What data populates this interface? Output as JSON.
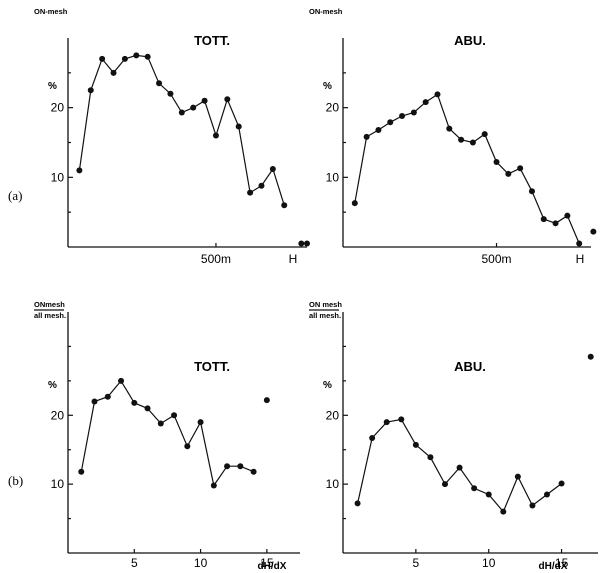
{
  "row_labels": {
    "a": "(a)",
    "b": "(b)"
  },
  "chart_data": [
    {
      "type": "line",
      "title": "TOTT.",
      "ylabel_top": "ON-mesh",
      "ylabel": "%",
      "xlabel": "H",
      "xtick_labels": [
        {
          "x": 13,
          "label": "500m"
        }
      ],
      "ylim": [
        0,
        30
      ],
      "yticks": [
        10,
        20
      ],
      "x": [
        1,
        2,
        3,
        4,
        5,
        6,
        7,
        8,
        9,
        10,
        11,
        12,
        13,
        14,
        15,
        16,
        17,
        18,
        19,
        20,
        21
      ],
      "y": [
        11,
        22.5,
        27,
        25,
        27,
        27.5,
        27.3,
        23.5,
        22,
        19.3,
        20,
        21,
        16,
        21.2,
        17.3,
        7.8,
        8.8,
        11.2,
        6,
        null,
        0.5
      ],
      "isolated": [
        {
          "x": 20.5,
          "y": 0.5
        }
      ],
      "xlim": [
        0,
        21
      ]
    },
    {
      "type": "line",
      "title": "ABU.",
      "ylabel_top": "ON-mesh",
      "ylabel": "%",
      "xlabel": "H",
      "xtick_labels": [
        {
          "x": 13,
          "label": "500m"
        }
      ],
      "ylim": [
        0,
        30
      ],
      "yticks": [
        10,
        20
      ],
      "x": [
        1,
        2,
        3,
        4,
        5,
        6,
        7,
        8,
        9,
        10,
        11,
        12,
        13,
        14,
        15,
        16,
        17,
        18,
        19,
        20,
        21
      ],
      "y": [
        6.3,
        15.8,
        16.8,
        17.9,
        18.8,
        19.3,
        20.8,
        21.9,
        17,
        15.4,
        15,
        16.2,
        12.2,
        10.5,
        11.3,
        8,
        4,
        3.4,
        4.5,
        0.5,
        null
      ],
      "isolated": [
        {
          "x": 21.2,
          "y": 2.2
        }
      ],
      "xlim": [
        0,
        21
      ]
    },
    {
      "type": "line",
      "title": "TOTT.",
      "ylabel_top": "ONmesh",
      "ylabel_bottom": "all mesh.",
      "ylabel": "%",
      "xlabel": "dH/dX",
      "xticks": [
        5,
        10,
        15
      ],
      "ylim": [
        0,
        35
      ],
      "yticks": [
        10,
        20
      ],
      "x": [
        1,
        2,
        3,
        4,
        5,
        6,
        7,
        8,
        9,
        10,
        11,
        12,
        13,
        14
      ],
      "y": [
        11.8,
        22,
        22.7,
        25,
        21.8,
        21,
        18.8,
        20,
        15.5,
        19,
        9.8,
        12.6,
        12.6,
        11.8
      ],
      "isolated": [
        {
          "x": 15,
          "y": 22.2
        }
      ],
      "xlim": [
        0,
        17.5
      ]
    },
    {
      "type": "line",
      "title": "ABU.",
      "ylabel_top": "ON mesh",
      "ylabel_bottom": "all mesh.",
      "ylabel": "%",
      "xlabel": "dH/dX",
      "xticks": [
        5,
        10,
        15
      ],
      "ylim": [
        0,
        35
      ],
      "yticks": [
        10,
        20
      ],
      "x": [
        1,
        2,
        3,
        4,
        5,
        6,
        7,
        8,
        9,
        10,
        11,
        12,
        13,
        14,
        15
      ],
      "y": [
        7.2,
        16.7,
        19,
        19.4,
        15.7,
        13.9,
        10,
        12.4,
        9.4,
        8.5,
        6,
        11.1,
        6.9,
        8.5,
        10.1
      ],
      "isolated": [
        {
          "x": 17,
          "y": 28.5
        }
      ],
      "xlim": [
        0,
        17.5
      ]
    }
  ]
}
